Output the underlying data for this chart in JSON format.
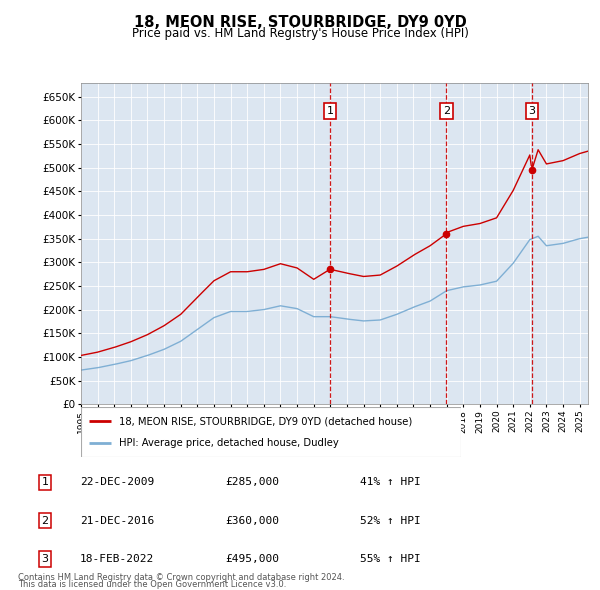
{
  "title": "18, MEON RISE, STOURBRIDGE, DY9 0YD",
  "subtitle": "Price paid vs. HM Land Registry's House Price Index (HPI)",
  "legend_line1": "18, MEON RISE, STOURBRIDGE, DY9 0YD (detached house)",
  "legend_line2": "HPI: Average price, detached house, Dudley",
  "footer_line1": "Contains HM Land Registry data © Crown copyright and database right 2024.",
  "footer_line2": "This data is licensed under the Open Government Licence v3.0.",
  "transactions": [
    {
      "num": 1,
      "date": "22-DEC-2009",
      "price": "£285,000",
      "hpi": "41% ↑ HPI",
      "year": 2009.97
    },
    {
      "num": 2,
      "date": "21-DEC-2016",
      "price": "£360,000",
      "hpi": "52% ↑ HPI",
      "year": 2016.97
    },
    {
      "num": 3,
      "date": "18-FEB-2022",
      "price": "£495,000",
      "hpi": "55% ↑ HPI",
      "year": 2022.12
    }
  ],
  "transaction_values": [
    285000,
    360000,
    495000
  ],
  "vline_color": "#cc0000",
  "red_line_color": "#cc0000",
  "blue_line_color": "#7fafd4",
  "background_color": "#dce6f1",
  "ylim": [
    0,
    680000
  ],
  "xlim_start": 1995.0,
  "xlim_end": 2025.5,
  "ytick_step": 50000,
  "hpi_knots": [
    [
      1995.0,
      72000
    ],
    [
      1996.0,
      77000
    ],
    [
      1997.0,
      84000
    ],
    [
      1998.0,
      92000
    ],
    [
      1999.0,
      103000
    ],
    [
      2000.0,
      116000
    ],
    [
      2001.0,
      133000
    ],
    [
      2002.0,
      158000
    ],
    [
      2003.0,
      183000
    ],
    [
      2004.0,
      196000
    ],
    [
      2005.0,
      196000
    ],
    [
      2006.0,
      200000
    ],
    [
      2007.0,
      208000
    ],
    [
      2008.0,
      202000
    ],
    [
      2009.0,
      185000
    ],
    [
      2010.0,
      185000
    ],
    [
      2011.0,
      180000
    ],
    [
      2012.0,
      176000
    ],
    [
      2013.0,
      178000
    ],
    [
      2014.0,
      190000
    ],
    [
      2015.0,
      205000
    ],
    [
      2016.0,
      218000
    ],
    [
      2017.0,
      240000
    ],
    [
      2018.0,
      248000
    ],
    [
      2019.0,
      252000
    ],
    [
      2020.0,
      260000
    ],
    [
      2021.0,
      298000
    ],
    [
      2022.0,
      348000
    ],
    [
      2022.5,
      355000
    ],
    [
      2023.0,
      335000
    ],
    [
      2024.0,
      340000
    ],
    [
      2025.0,
      350000
    ],
    [
      2025.5,
      353000
    ]
  ],
  "red_knots_before_t1": [
    [
      1995.0,
      103000
    ],
    [
      1996.0,
      110000
    ],
    [
      1997.0,
      120000
    ],
    [
      1998.0,
      132000
    ],
    [
      1999.0,
      147000
    ],
    [
      2000.0,
      166000
    ],
    [
      2001.0,
      190000
    ],
    [
      2002.0,
      226000
    ],
    [
      2003.0,
      261000
    ],
    [
      2004.0,
      280000
    ],
    [
      2005.0,
      280000
    ],
    [
      2006.0,
      285000
    ],
    [
      2007.0,
      297000
    ],
    [
      2008.0,
      288000
    ],
    [
      2009.0,
      264000
    ],
    [
      2009.97,
      285000
    ]
  ],
  "red_knots_t1_to_t2": [
    [
      2009.97,
      285000
    ],
    [
      2010.0,
      285000
    ],
    [
      2011.0,
      277000
    ],
    [
      2012.0,
      270000
    ],
    [
      2013.0,
      273000
    ],
    [
      2014.0,
      292000
    ],
    [
      2015.0,
      315000
    ],
    [
      2016.0,
      335000
    ],
    [
      2016.97,
      360000
    ]
  ],
  "red_knots_t2_to_t3": [
    [
      2016.97,
      360000
    ],
    [
      2017.0,
      363000
    ],
    [
      2018.0,
      376000
    ],
    [
      2019.0,
      382000
    ],
    [
      2020.0,
      394000
    ],
    [
      2021.0,
      452000
    ],
    [
      2022.0,
      527000
    ],
    [
      2022.12,
      495000
    ]
  ],
  "red_knots_after_t3": [
    [
      2022.12,
      495000
    ],
    [
      2022.5,
      538000
    ],
    [
      2023.0,
      508000
    ],
    [
      2024.0,
      515000
    ],
    [
      2025.0,
      530000
    ],
    [
      2025.5,
      535000
    ]
  ]
}
